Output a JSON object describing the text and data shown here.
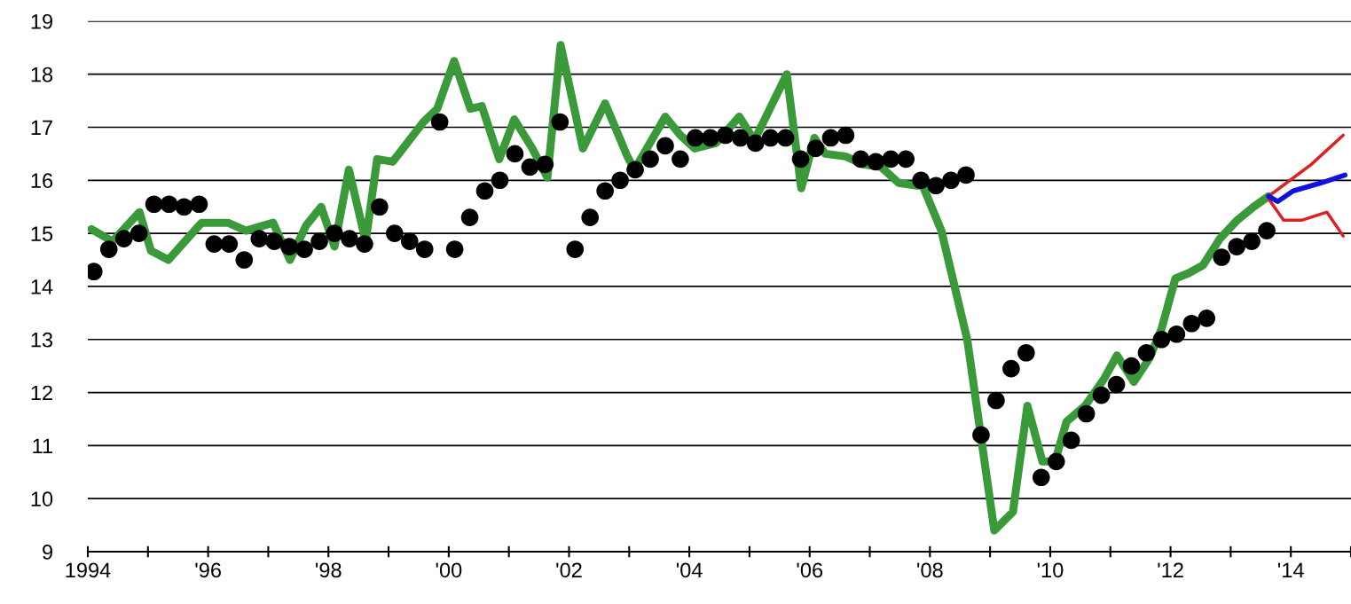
{
  "chart_data": {
    "type": "line",
    "xlim": [
      1994,
      2015
    ],
    "ylim": [
      9,
      19
    ],
    "xticks": [
      {
        "value": 1994,
        "label": "1994"
      },
      {
        "value": 1995,
        "label": null
      },
      {
        "value": 1996,
        "label": "'96"
      },
      {
        "value": 1997,
        "label": null
      },
      {
        "value": 1998,
        "label": "'98"
      },
      {
        "value": 1999,
        "label": null
      },
      {
        "value": 2000,
        "label": "'00"
      },
      {
        "value": 2001,
        "label": null
      },
      {
        "value": 2002,
        "label": "'02"
      },
      {
        "value": 2003,
        "label": null
      },
      {
        "value": 2004,
        "label": "'04"
      },
      {
        "value": 2005,
        "label": null
      },
      {
        "value": 2006,
        "label": "'06"
      },
      {
        "value": 2007,
        "label": null
      },
      {
        "value": 2008,
        "label": "'08"
      },
      {
        "value": 2009,
        "label": null
      },
      {
        "value": 2010,
        "label": "'10"
      },
      {
        "value": 2011,
        "label": null
      },
      {
        "value": 2012,
        "label": "'12"
      },
      {
        "value": 2013,
        "label": null
      },
      {
        "value": 2014,
        "label": "'14"
      },
      {
        "value": 2015,
        "label": null
      }
    ],
    "yticks": [
      9,
      10,
      11,
      12,
      13,
      14,
      15,
      16,
      17,
      18,
      19
    ],
    "grid": "y",
    "legend": false,
    "series": [
      {
        "color": "#3a9a3a",
        "x": [
          1994.06,
          1994.41,
          1994.86,
          1995.05,
          1995.34,
          1995.89,
          1996.33,
          1996.63,
          1997.08,
          1997.36,
          1997.63,
          1997.88,
          1998.1,
          1998.34,
          1998.62,
          1998.81,
          1999.07,
          1999.58,
          1999.81,
          2000.09,
          2000.36,
          2000.55,
          2000.84,
          2001.09,
          2001.39,
          2001.64,
          2001.86,
          2002.23,
          2002.6,
          2002.97,
          2003.09,
          2003.6,
          2003.85,
          2004.09,
          2004.44,
          2004.83,
          2005.08,
          2005.62,
          2005.86,
          2006.08,
          2006.26,
          2006.6,
          2006.89,
          2007.19,
          2007.48,
          2007.78,
          2007.88,
          2008.19,
          2008.4,
          2008.62,
          2009.07,
          2009.38,
          2009.62,
          2009.87,
          2010.08,
          2010.27,
          2010.58,
          2010.89,
          2011.11,
          2011.39,
          2011.65,
          2011.85,
          2012.08,
          2012.3,
          2012.54,
          2012.82,
          2013.11,
          2013.38,
          2013.63
        ],
        "values": [
          15.08,
          14.85,
          15.4,
          14.67,
          14.5,
          15.2,
          15.2,
          15.05,
          15.2,
          14.5,
          15.15,
          15.5,
          14.75,
          16.2,
          14.85,
          16.4,
          16.35,
          17.1,
          17.35,
          18.25,
          17.35,
          17.4,
          16.4,
          17.15,
          16.6,
          16.05,
          18.55,
          16.6,
          17.45,
          16.45,
          16.2,
          17.2,
          16.85,
          16.6,
          16.7,
          17.2,
          16.75,
          18.0,
          15.85,
          16.8,
          16.5,
          16.45,
          16.3,
          16.25,
          15.95,
          15.9,
          15.9,
          15.05,
          14.05,
          13.0,
          9.4,
          9.75,
          11.75,
          10.7,
          10.7,
          11.45,
          11.75,
          12.25,
          12.7,
          12.2,
          12.65,
          13.2,
          14.15,
          14.25,
          14.4,
          14.9,
          15.25,
          15.5,
          15.7
        ]
      },
      {
        "type": "scatter",
        "color": "#000000",
        "marker": "circle",
        "x": [
          1994.1,
          1994.35,
          1994.6,
          1994.85,
          1995.1,
          1995.35,
          1995.6,
          1995.85,
          1996.1,
          1996.35,
          1996.6,
          1996.85,
          1997.1,
          1997.35,
          1997.6,
          1997.85,
          1998.1,
          1998.35,
          1998.6,
          1998.85,
          1999.1,
          1999.35,
          1999.6,
          1999.85,
          2000.1,
          2000.35,
          2000.6,
          2000.85,
          2001.1,
          2001.35,
          2001.6,
          2001.85,
          2002.1,
          2002.35,
          2002.6,
          2002.85,
          2003.1,
          2003.35,
          2003.6,
          2003.85,
          2004.1,
          2004.35,
          2004.6,
          2004.85,
          2005.1,
          2005.35,
          2005.6,
          2005.85,
          2006.1,
          2006.35,
          2006.6,
          2006.85,
          2007.1,
          2007.35,
          2007.6,
          2007.85,
          2008.1,
          2008.35,
          2008.6,
          2008.85,
          2009.1,
          2009.35,
          2009.6,
          2009.85,
          2010.1,
          2010.35,
          2010.6,
          2010.85,
          2011.1,
          2011.35,
          2011.6,
          2011.85,
          2012.1,
          2012.35,
          2012.6,
          2012.85,
          2013.1,
          2013.35,
          2013.6
        ],
        "values": [
          14.28,
          14.7,
          14.9,
          15.0,
          15.55,
          15.55,
          15.5,
          15.55,
          14.8,
          14.8,
          14.5,
          14.9,
          14.85,
          14.75,
          14.7,
          14.85,
          15.0,
          14.9,
          14.8,
          15.5,
          15.0,
          14.85,
          14.7,
          17.1,
          14.7,
          15.3,
          15.8,
          16.0,
          16.5,
          16.25,
          16.3,
          17.1,
          14.7,
          15.3,
          15.8,
          16.0,
          16.2,
          16.4,
          16.65,
          16.4,
          16.8,
          16.8,
          16.85,
          16.8,
          16.7,
          16.8,
          16.8,
          16.4,
          16.6,
          16.8,
          16.85,
          16.4,
          16.35,
          16.4,
          16.4,
          16.0,
          15.9,
          16.0,
          16.1,
          11.2,
          11.85,
          12.45,
          12.75,
          10.4,
          10.7,
          11.1,
          11.6,
          11.95,
          12.15,
          12.5,
          12.75,
          13.0,
          13.1,
          13.3,
          13.4,
          14.55,
          14.75,
          14.85,
          15.05
        ]
      },
      {
        "color": "#e02020",
        "x": [
          2013.63,
          2014.34,
          2014.87
        ],
        "values": [
          15.7,
          16.3,
          16.85
        ]
      },
      {
        "color": "#e02020",
        "x": [
          2013.63,
          2013.88,
          2014.19,
          2014.6,
          2014.87
        ],
        "values": [
          15.65,
          15.25,
          15.25,
          15.4,
          14.95
        ]
      },
      {
        "color": "#1010e0",
        "x": [
          2013.63,
          2013.78,
          2014.04,
          2014.5,
          2014.9
        ],
        "values": [
          15.7,
          15.6,
          15.8,
          15.95,
          16.1
        ]
      }
    ]
  }
}
